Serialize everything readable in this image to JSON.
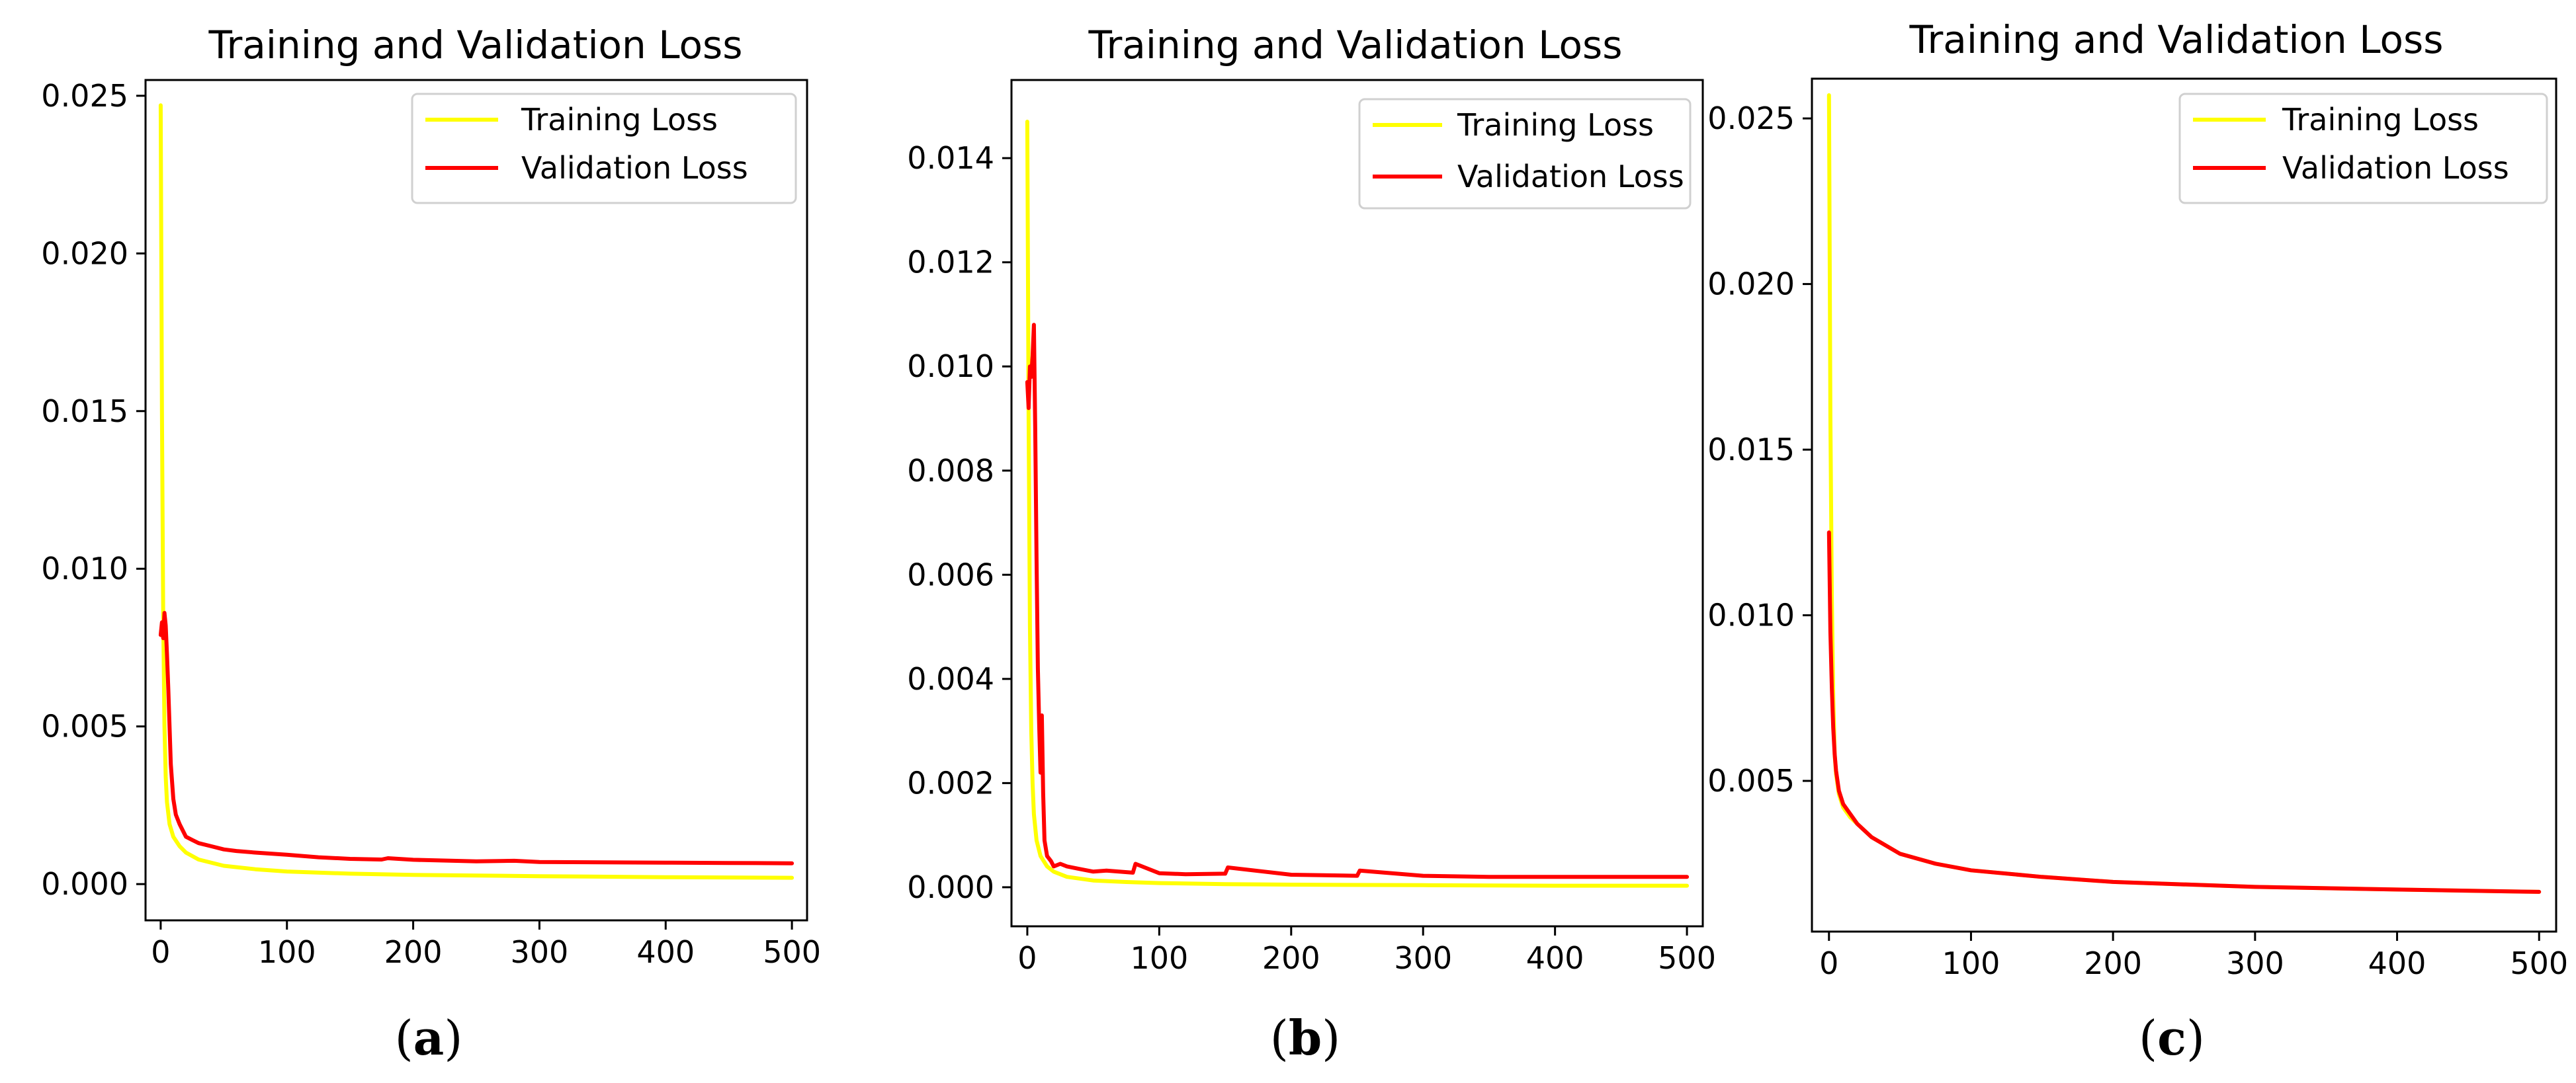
{
  "figure": {
    "captions": [
      {
        "paren_open": "(",
        "letter": "a",
        "paren_close": ")"
      },
      {
        "paren_open": "(",
        "letter": "b",
        "paren_close": ")"
      },
      {
        "paren_open": "(",
        "letter": "c",
        "paren_close": ")"
      }
    ]
  },
  "chart_data": [
    {
      "type": "line",
      "title": "Training and Validation Loss",
      "xlabel": "",
      "ylabel": "",
      "xlim": [
        -12,
        512
      ],
      "ylim": [
        -0.00115,
        0.0255
      ],
      "xticks": [
        0,
        100,
        200,
        300,
        400,
        500
      ],
      "xtick_labels": [
        "0",
        "100",
        "200",
        "300",
        "400",
        "500"
      ],
      "yticks": [
        0,
        0.005,
        0.01,
        0.015,
        0.02,
        0.025
      ],
      "ytick_labels": [
        "0.000",
        "0.005",
        "0.010",
        "0.015",
        "0.020",
        "0.025"
      ],
      "legend": "top-right",
      "series": [
        {
          "name": "Training Loss",
          "color": "#ffff00",
          "x": [
            0,
            1,
            2,
            3,
            4,
            5,
            7,
            10,
            15,
            20,
            30,
            50,
            75,
            100,
            150,
            200,
            300,
            400,
            500
          ],
          "y": [
            0.0247,
            0.015,
            0.0085,
            0.005,
            0.0034,
            0.0026,
            0.0019,
            0.0015,
            0.0012,
            0.001,
            0.00078,
            0.00058,
            0.00047,
            0.0004,
            0.00033,
            0.00029,
            0.00025,
            0.00022,
            0.0002
          ]
        },
        {
          "name": "Validation Loss",
          "color": "#ff0000",
          "x": [
            0,
            1,
            2,
            3,
            4,
            5,
            6,
            7,
            8,
            10,
            12,
            15,
            20,
            25,
            30,
            40,
            50,
            60,
            75,
            100,
            125,
            150,
            175,
            180,
            200,
            250,
            280,
            300,
            350,
            400,
            450,
            500
          ],
          "y": [
            0.0079,
            0.0083,
            0.0078,
            0.0086,
            0.0082,
            0.0073,
            0.0062,
            0.005,
            0.0038,
            0.0027,
            0.0022,
            0.0019,
            0.0015,
            0.0014,
            0.0013,
            0.0012,
            0.0011,
            0.00105,
            0.001,
            0.00093,
            0.00085,
            0.0008,
            0.00078,
            0.00082,
            0.00077,
            0.00072,
            0.00074,
            0.0007,
            0.00069,
            0.00068,
            0.00067,
            0.00066
          ]
        }
      ]
    },
    {
      "type": "line",
      "title": "Training and Validation Loss",
      "xlabel": "",
      "ylabel": "",
      "xlim": [
        -12,
        512
      ],
      "ylim": [
        -0.00075,
        0.0155
      ],
      "xticks": [
        0,
        100,
        200,
        300,
        400,
        500
      ],
      "xtick_labels": [
        "0",
        "100",
        "200",
        "300",
        "400",
        "500"
      ],
      "yticks": [
        0,
        0.002,
        0.004,
        0.006,
        0.008,
        0.01,
        0.012,
        0.014
      ],
      "ytick_labels": [
        "0.000",
        "0.002",
        "0.004",
        "0.006",
        "0.008",
        "0.010",
        "0.012",
        "0.014"
      ],
      "legend": "top-right",
      "series": [
        {
          "name": "Training Loss",
          "color": "#ffff00",
          "x": [
            0,
            1,
            2,
            3,
            4,
            5,
            7,
            10,
            15,
            20,
            30,
            50,
            75,
            100,
            150,
            200,
            300,
            400,
            500
          ],
          "y": [
            0.0147,
            0.009,
            0.005,
            0.003,
            0.002,
            0.0014,
            0.0009,
            0.0006,
            0.0004,
            0.0003,
            0.0002,
            0.00013,
            0.0001,
            8e-05,
            6e-05,
            5e-05,
            4e-05,
            3e-05,
            3e-05
          ]
        },
        {
          "name": "Validation Loss",
          "color": "#ff0000",
          "x": [
            0,
            1,
            2,
            3,
            4,
            5,
            6,
            7,
            8,
            9,
            10,
            11,
            12,
            13,
            15,
            18,
            20,
            25,
            30,
            40,
            50,
            60,
            80,
            82,
            100,
            120,
            150,
            152,
            200,
            250,
            252,
            300,
            350,
            400,
            450,
            500
          ],
          "y": [
            0.0097,
            0.0092,
            0.01,
            0.0098,
            0.0102,
            0.0108,
            0.0088,
            0.0063,
            0.0042,
            0.0031,
            0.0022,
            0.0033,
            0.0018,
            0.0009,
            0.0006,
            0.0005,
            0.0004,
            0.00045,
            0.0004,
            0.00035,
            0.0003,
            0.00032,
            0.00028,
            0.00045,
            0.00027,
            0.00025,
            0.00026,
            0.00038,
            0.00024,
            0.00022,
            0.00032,
            0.00022,
            0.0002,
            0.0002,
            0.0002,
            0.0002
          ]
        }
      ]
    },
    {
      "type": "line",
      "title": "Training and Validation Loss",
      "xlabel": "",
      "ylabel": "",
      "xlim": [
        -12,
        512
      ],
      "ylim": [
        0.00045,
        0.0262
      ],
      "xticks": [
        0,
        100,
        200,
        300,
        400,
        500
      ],
      "xtick_labels": [
        "0",
        "100",
        "200",
        "300",
        "400",
        "500"
      ],
      "yticks": [
        0.005,
        0.01,
        0.015,
        0.02,
        0.025
      ],
      "ytick_labels": [
        "0.005",
        "0.010",
        "0.015",
        "0.020",
        "0.025"
      ],
      "legend": "top-right",
      "series": [
        {
          "name": "Training Loss",
          "color": "#ffff00",
          "x": [
            0,
            1,
            2,
            3,
            4,
            5,
            7,
            10,
            15,
            20,
            30,
            50,
            75,
            100,
            150,
            200,
            300,
            400,
            500
          ],
          "y": [
            0.0257,
            0.016,
            0.0105,
            0.0075,
            0.0058,
            0.0052,
            0.0046,
            0.0042,
            0.0039,
            0.0037,
            0.0033,
            0.0028,
            0.0025,
            0.0023,
            0.0021,
            0.00195,
            0.0018,
            0.00172,
            0.00165
          ]
        },
        {
          "name": "Validation Loss",
          "color": "#ff0000",
          "x": [
            0,
            1,
            2,
            3,
            4,
            5,
            7,
            10,
            15,
            20,
            30,
            50,
            75,
            100,
            150,
            200,
            300,
            400,
            500
          ],
          "y": [
            0.0125,
            0.0095,
            0.0078,
            0.0066,
            0.0058,
            0.0053,
            0.0047,
            0.0043,
            0.004,
            0.0037,
            0.0033,
            0.0028,
            0.0025,
            0.0023,
            0.0021,
            0.00195,
            0.0018,
            0.00172,
            0.00165
          ]
        }
      ]
    }
  ]
}
